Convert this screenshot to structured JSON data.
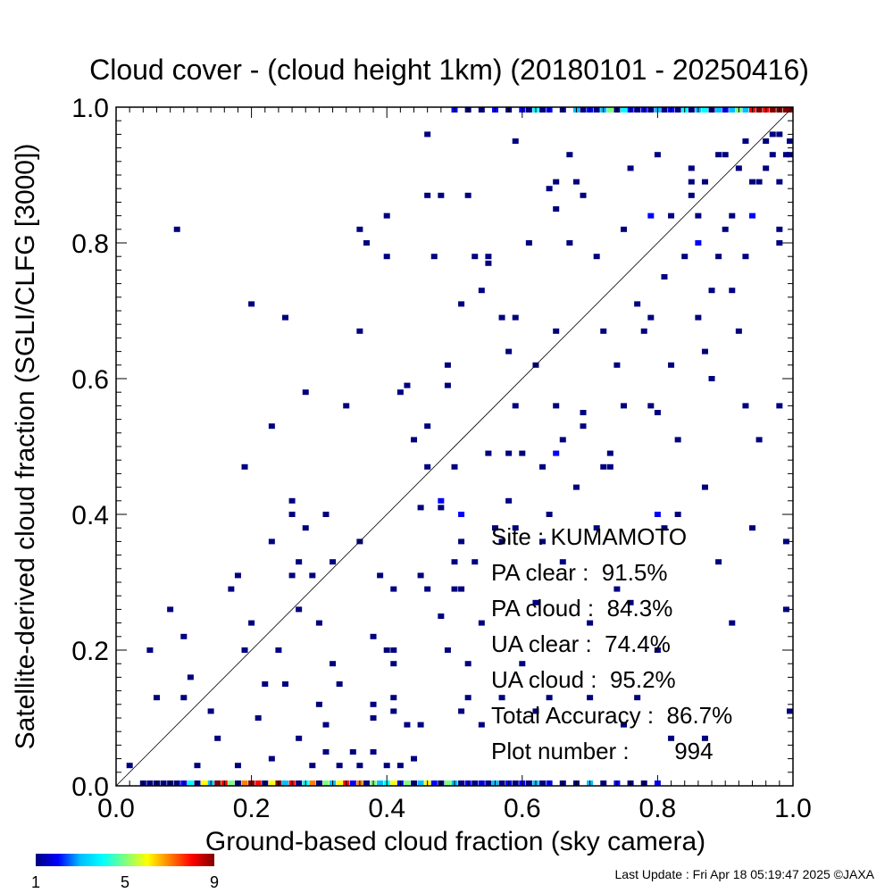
{
  "chart_data": {
    "type": "heatmap",
    "title": "Cloud cover - (cloud height 1km)  (20180101 - 20250416)",
    "xlabel": "Ground-based cloud fraction (sky camera)",
    "ylabel": "Satellite-derived cloud fraction (SGLI/CLFG [3000])",
    "xlim": [
      0.0,
      1.0
    ],
    "ylim": [
      0.0,
      1.0
    ],
    "x_ticks": [
      "0.0",
      "0.2",
      "0.4",
      "0.6",
      "0.8",
      "1.0"
    ],
    "y_ticks": [
      "0.0",
      "0.2",
      "0.4",
      "0.6",
      "0.8",
      "1.0"
    ],
    "grid": false,
    "reference_line": "y = x",
    "colorbar": {
      "min": 1,
      "max": 9,
      "tick_labels": [
        "1",
        "5",
        "9"
      ],
      "colors": [
        "#00007f",
        "#0000ff",
        "#00bfff",
        "#00ffff",
        "#7fff7f",
        "#ffff00",
        "#ff7f00",
        "#ff0000",
        "#7f0000"
      ]
    },
    "stats": [
      {
        "label": "Site : KUMAMOTO"
      },
      {
        "label": "PA clear :  91.5%"
      },
      {
        "label": "PA cloud :  84.3%"
      },
      {
        "label": "UA clear :  74.4%"
      },
      {
        "label": "UA cloud :  95.2%"
      },
      {
        "label": "Total Accuracy :  86.7%"
      },
      {
        "label": "Plot number :       994"
      }
    ],
    "points": [
      [
        0.02,
        0.03,
        1
      ],
      [
        0.05,
        0.2,
        1
      ],
      [
        0.06,
        0.13,
        1
      ],
      [
        0.08,
        0.26,
        1
      ],
      [
        0.09,
        0.82,
        1
      ],
      [
        0.1,
        0.22,
        1
      ],
      [
        0.1,
        0.13,
        1
      ],
      [
        0.11,
        0.16,
        1
      ],
      [
        0.12,
        0.03,
        1
      ],
      [
        0.14,
        0.11,
        1
      ],
      [
        0.15,
        0.07,
        1
      ],
      [
        0.17,
        0.29,
        1
      ],
      [
        0.18,
        0.31,
        1
      ],
      [
        0.18,
        0.03,
        1
      ],
      [
        0.19,
        0.2,
        1
      ],
      [
        0.19,
        0.47,
        1
      ],
      [
        0.2,
        0.71,
        1
      ],
      [
        0.2,
        0.24,
        1
      ],
      [
        0.21,
        0.1,
        1
      ],
      [
        0.22,
        0.15,
        1
      ],
      [
        0.23,
        0.04,
        1
      ],
      [
        0.23,
        0.36,
        1
      ],
      [
        0.23,
        0.53,
        1
      ],
      [
        0.24,
        0.2,
        1
      ],
      [
        0.25,
        0.69,
        1
      ],
      [
        0.25,
        0.15,
        1
      ],
      [
        0.26,
        0.31,
        1
      ],
      [
        0.26,
        0.42,
        1
      ],
      [
        0.26,
        0.4,
        1
      ],
      [
        0.27,
        0.33,
        1
      ],
      [
        0.27,
        0.26,
        1
      ],
      [
        0.27,
        0.07,
        1
      ],
      [
        0.28,
        0.58,
        1
      ],
      [
        0.28,
        0.38,
        1
      ],
      [
        0.29,
        0.03,
        1
      ],
      [
        0.29,
        0.31,
        1
      ],
      [
        0.3,
        0.24,
        1
      ],
      [
        0.3,
        0.12,
        1
      ],
      [
        0.31,
        0.09,
        1
      ],
      [
        0.31,
        0.4,
        1
      ],
      [
        0.31,
        0.05,
        1
      ],
      [
        0.32,
        0.18,
        1
      ],
      [
        0.32,
        0.33,
        1
      ],
      [
        0.33,
        0.15,
        1
      ],
      [
        0.33,
        0.03,
        1
      ],
      [
        0.34,
        0.56,
        1
      ],
      [
        0.35,
        0.05,
        1
      ],
      [
        0.36,
        0.82,
        1
      ],
      [
        0.36,
        0.67,
        1
      ],
      [
        0.36,
        0.36,
        1
      ],
      [
        0.36,
        0.03,
        1
      ],
      [
        0.37,
        0.8,
        1
      ],
      [
        0.38,
        0.12,
        1
      ],
      [
        0.38,
        0.1,
        1
      ],
      [
        0.38,
        0.05,
        1
      ],
      [
        0.38,
        0.22,
        1
      ],
      [
        0.39,
        0.31,
        1
      ],
      [
        0.4,
        0.84,
        1
      ],
      [
        0.4,
        0.2,
        1
      ],
      [
        0.4,
        0.78,
        1
      ],
      [
        0.4,
        0.03,
        1
      ],
      [
        0.41,
        0.13,
        1
      ],
      [
        0.41,
        0.11,
        1
      ],
      [
        0.41,
        0.2,
        1
      ],
      [
        0.41,
        0.18,
        1
      ],
      [
        0.41,
        0.29,
        1
      ],
      [
        0.42,
        0.58,
        1
      ],
      [
        0.42,
        0.03,
        1
      ],
      [
        0.43,
        0.59,
        1
      ],
      [
        0.43,
        0.09,
        1
      ],
      [
        0.44,
        0.51,
        1
      ],
      [
        0.44,
        0.04,
        1
      ],
      [
        0.45,
        0.09,
        1
      ],
      [
        0.45,
        0.31,
        1
      ],
      [
        0.45,
        0.41,
        1
      ],
      [
        0.46,
        0.87,
        1
      ],
      [
        0.46,
        0.96,
        1
      ],
      [
        0.46,
        0.29,
        1
      ],
      [
        0.46,
        0.53,
        1
      ],
      [
        0.46,
        0.47,
        1
      ],
      [
        0.47,
        0.78,
        1
      ],
      [
        0.48,
        0.87,
        1
      ],
      [
        0.48,
        0.41,
        1
      ],
      [
        0.48,
        0.25,
        1
      ],
      [
        0.48,
        0.42,
        2
      ],
      [
        0.49,
        0.62,
        1
      ],
      [
        0.49,
        0.59,
        1
      ],
      [
        0.49,
        0.2,
        1
      ],
      [
        0.5,
        0.29,
        1
      ],
      [
        0.5,
        0.47,
        1
      ],
      [
        0.5,
        0.33,
        1
      ],
      [
        0.51,
        0.71,
        1
      ],
      [
        0.51,
        0.36,
        1
      ],
      [
        0.51,
        0.29,
        1
      ],
      [
        0.51,
        0.4,
        2
      ],
      [
        0.51,
        0.11,
        1
      ],
      [
        0.52,
        0.87,
        1
      ],
      [
        0.52,
        0.18,
        1
      ],
      [
        0.52,
        0.13,
        1
      ],
      [
        0.53,
        0.78,
        1
      ],
      [
        0.53,
        0.33,
        1
      ],
      [
        0.54,
        0.73,
        1
      ],
      [
        0.54,
        0.24,
        1
      ],
      [
        0.54,
        0.09,
        1
      ],
      [
        0.55,
        0.78,
        1
      ],
      [
        0.55,
        0.77,
        1
      ],
      [
        0.55,
        0.49,
        1
      ],
      [
        0.56,
        0.38,
        1
      ],
      [
        0.57,
        0.69,
        1
      ],
      [
        0.57,
        0.13,
        1
      ],
      [
        0.57,
        0.36,
        1
      ],
      [
        0.58,
        0.64,
        1
      ],
      [
        0.58,
        0.49,
        1
      ],
      [
        0.58,
        0.42,
        1
      ],
      [
        0.59,
        0.95,
        1
      ],
      [
        0.59,
        0.69,
        1
      ],
      [
        0.59,
        0.56,
        1
      ],
      [
        0.59,
        0.38,
        1
      ],
      [
        0.6,
        0.49,
        1
      ],
      [
        0.6,
        0.18,
        1
      ],
      [
        0.61,
        0.8,
        1
      ],
      [
        0.62,
        0.27,
        1
      ],
      [
        0.62,
        0.62,
        1
      ],
      [
        0.62,
        0.11,
        1
      ],
      [
        0.63,
        0.47,
        1
      ],
      [
        0.63,
        0.36,
        1
      ],
      [
        0.64,
        0.88,
        1
      ],
      [
        0.64,
        0.4,
        1
      ],
      [
        0.64,
        0.13,
        1
      ],
      [
        0.65,
        0.85,
        1
      ],
      [
        0.65,
        0.89,
        1
      ],
      [
        0.65,
        0.49,
        2
      ],
      [
        0.65,
        0.67,
        1
      ],
      [
        0.65,
        0.56,
        1
      ],
      [
        0.66,
        0.51,
        1
      ],
      [
        0.66,
        0.33,
        1
      ],
      [
        0.67,
        0.93,
        1
      ],
      [
        0.67,
        0.8,
        1
      ],
      [
        0.68,
        0.89,
        1
      ],
      [
        0.68,
        0.44,
        1
      ],
      [
        0.69,
        0.87,
        1
      ],
      [
        0.69,
        0.53,
        1
      ],
      [
        0.69,
        0.55,
        1
      ],
      [
        0.7,
        0.24,
        1
      ],
      [
        0.7,
        0.13,
        1
      ],
      [
        0.71,
        0.78,
        1
      ],
      [
        0.71,
        0.38,
        1
      ],
      [
        0.72,
        0.67,
        1
      ],
      [
        0.72,
        0.47,
        1
      ],
      [
        0.73,
        0.49,
        1
      ],
      [
        0.73,
        0.47,
        1
      ],
      [
        0.74,
        0.29,
        1
      ],
      [
        0.74,
        0.62,
        1
      ],
      [
        0.75,
        0.82,
        1
      ],
      [
        0.75,
        0.56,
        1
      ],
      [
        0.75,
        0.09,
        1
      ],
      [
        0.76,
        0.91,
        1
      ],
      [
        0.76,
        0.27,
        1
      ],
      [
        0.77,
        0.71,
        1
      ],
      [
        0.77,
        0.13,
        1
      ],
      [
        0.78,
        0.67,
        1
      ],
      [
        0.79,
        0.84,
        2
      ],
      [
        0.79,
        0.56,
        1
      ],
      [
        0.79,
        0.69,
        1
      ],
      [
        0.8,
        0.55,
        1
      ],
      [
        0.8,
        0.93,
        1
      ],
      [
        0.8,
        0.4,
        2
      ],
      [
        0.8,
        0.2,
        1
      ],
      [
        0.81,
        0.75,
        1
      ],
      [
        0.81,
        0.38,
        1
      ],
      [
        0.82,
        0.62,
        1
      ],
      [
        0.82,
        0.84,
        1
      ],
      [
        0.82,
        0.07,
        1
      ],
      [
        0.83,
        0.4,
        1
      ],
      [
        0.83,
        0.51,
        1
      ],
      [
        0.84,
        0.78,
        1
      ],
      [
        0.85,
        0.87,
        1
      ],
      [
        0.85,
        0.91,
        1
      ],
      [
        0.85,
        0.89,
        1
      ],
      [
        0.86,
        0.84,
        1
      ],
      [
        0.86,
        0.69,
        1
      ],
      [
        0.86,
        0.8,
        2
      ],
      [
        0.87,
        0.64,
        1
      ],
      [
        0.87,
        0.44,
        1
      ],
      [
        0.87,
        0.89,
        1
      ],
      [
        0.87,
        0.07,
        1
      ],
      [
        0.88,
        0.73,
        1
      ],
      [
        0.88,
        0.6,
        1
      ],
      [
        0.89,
        0.93,
        1
      ],
      [
        0.89,
        0.78,
        1
      ],
      [
        0.89,
        0.33,
        1
      ],
      [
        0.9,
        0.93,
        1
      ],
      [
        0.9,
        0.82,
        1
      ],
      [
        0.91,
        0.84,
        1
      ],
      [
        0.91,
        0.73,
        1
      ],
      [
        0.91,
        0.24,
        1
      ],
      [
        0.92,
        0.91,
        1
      ],
      [
        0.92,
        0.67,
        1
      ],
      [
        0.93,
        0.78,
        1
      ],
      [
        0.93,
        0.95,
        1
      ],
      [
        0.93,
        0.56,
        1
      ],
      [
        0.94,
        0.89,
        1
      ],
      [
        0.94,
        0.84,
        2
      ],
      [
        0.94,
        0.38,
        1
      ],
      [
        0.95,
        0.89,
        1
      ],
      [
        0.95,
        0.51,
        1
      ],
      [
        0.96,
        0.95,
        1
      ],
      [
        0.96,
        0.91,
        1
      ],
      [
        0.97,
        0.96,
        1
      ],
      [
        0.97,
        0.93,
        1
      ],
      [
        0.98,
        0.96,
        1
      ],
      [
        0.98,
        0.82,
        1
      ],
      [
        0.98,
        0.8,
        1
      ],
      [
        0.98,
        0.89,
        1
      ],
      [
        0.98,
        0.56,
        1
      ],
      [
        0.99,
        0.93,
        1
      ],
      [
        0.99,
        0.36,
        1
      ],
      [
        0.99,
        0.26,
        1
      ],
      [
        1.0,
        0.93,
        1
      ],
      [
        1.0,
        0.95,
        1
      ],
      [
        1.0,
        0.11,
        1
      ],
      [
        0.04,
        0.0,
        1
      ],
      [
        0.05,
        0.0,
        1
      ],
      [
        0.06,
        0.0,
        1
      ],
      [
        0.07,
        0.0,
        1
      ],
      [
        0.08,
        0.0,
        1
      ],
      [
        0.09,
        0.0,
        1
      ],
      [
        0.1,
        0.0,
        2
      ],
      [
        0.11,
        0.0,
        4
      ],
      [
        0.12,
        0.0,
        1
      ],
      [
        0.13,
        0.0,
        6
      ],
      [
        0.14,
        0.0,
        3
      ],
      [
        0.15,
        0.0,
        9
      ],
      [
        0.16,
        0.0,
        8
      ],
      [
        0.17,
        0.0,
        5
      ],
      [
        0.18,
        0.0,
        1
      ],
      [
        0.19,
        0.0,
        7
      ],
      [
        0.2,
        0.0,
        9
      ],
      [
        0.21,
        0.0,
        8
      ],
      [
        0.22,
        0.0,
        1
      ],
      [
        0.23,
        0.0,
        6
      ],
      [
        0.24,
        0.0,
        9
      ],
      [
        0.25,
        0.0,
        3
      ],
      [
        0.26,
        0.0,
        8
      ],
      [
        0.27,
        0.0,
        1
      ],
      [
        0.28,
        0.0,
        4
      ],
      [
        0.29,
        0.0,
        7
      ],
      [
        0.3,
        0.0,
        1
      ],
      [
        0.31,
        0.0,
        5
      ],
      [
        0.32,
        0.0,
        3
      ],
      [
        0.33,
        0.0,
        6
      ],
      [
        0.34,
        0.0,
        8
      ],
      [
        0.35,
        0.0,
        2
      ],
      [
        0.36,
        0.0,
        7
      ],
      [
        0.37,
        0.0,
        1
      ],
      [
        0.38,
        0.0,
        5
      ],
      [
        0.39,
        0.0,
        3
      ],
      [
        0.4,
        0.0,
        4
      ],
      [
        0.41,
        0.0,
        6
      ],
      [
        0.42,
        0.0,
        2
      ],
      [
        0.43,
        0.0,
        5
      ],
      [
        0.44,
        0.0,
        1
      ],
      [
        0.45,
        0.0,
        3
      ],
      [
        0.46,
        0.0,
        6
      ],
      [
        0.47,
        0.0,
        2
      ],
      [
        0.48,
        0.0,
        1
      ],
      [
        0.49,
        0.0,
        5
      ],
      [
        0.5,
        0.0,
        3
      ],
      [
        0.51,
        0.0,
        1
      ],
      [
        0.52,
        0.0,
        2
      ],
      [
        0.53,
        0.0,
        1
      ],
      [
        0.54,
        0.0,
        2
      ],
      [
        0.55,
        0.0,
        1
      ],
      [
        0.56,
        0.0,
        3
      ],
      [
        0.57,
        0.0,
        1
      ],
      [
        0.58,
        0.0,
        2
      ],
      [
        0.59,
        0.0,
        1
      ],
      [
        0.6,
        0.0,
        2
      ],
      [
        0.61,
        0.0,
        1
      ],
      [
        0.62,
        0.0,
        3
      ],
      [
        0.63,
        0.0,
        1
      ],
      [
        0.64,
        0.0,
        2
      ],
      [
        0.66,
        0.0,
        1
      ],
      [
        0.68,
        0.0,
        1
      ],
      [
        0.7,
        0.0,
        3
      ],
      [
        0.72,
        0.0,
        1
      ],
      [
        0.74,
        0.0,
        2
      ],
      [
        0.76,
        0.0,
        1
      ],
      [
        0.78,
        0.0,
        1
      ],
      [
        0.8,
        0.0,
        2
      ],
      [
        0.5,
        1.0,
        2
      ],
      [
        0.52,
        1.0,
        1
      ],
      [
        0.54,
        1.0,
        1
      ],
      [
        0.56,
        1.0,
        2
      ],
      [
        0.58,
        1.0,
        1
      ],
      [
        0.6,
        1.0,
        2
      ],
      [
        0.61,
        1.0,
        1
      ],
      [
        0.62,
        1.0,
        4
      ],
      [
        0.63,
        1.0,
        1
      ],
      [
        0.64,
        1.0,
        2
      ],
      [
        0.66,
        1.0,
        1
      ],
      [
        0.68,
        1.0,
        3
      ],
      [
        0.69,
        1.0,
        1
      ],
      [
        0.7,
        1.0,
        2
      ],
      [
        0.71,
        1.0,
        1
      ],
      [
        0.72,
        1.0,
        3
      ],
      [
        0.73,
        1.0,
        5
      ],
      [
        0.74,
        1.0,
        1
      ],
      [
        0.75,
        1.0,
        4
      ],
      [
        0.76,
        1.0,
        2
      ],
      [
        0.77,
        1.0,
        1
      ],
      [
        0.78,
        1.0,
        2
      ],
      [
        0.79,
        1.0,
        1
      ],
      [
        0.8,
        1.0,
        3
      ],
      [
        0.81,
        1.0,
        1
      ],
      [
        0.82,
        1.0,
        2
      ],
      [
        0.83,
        1.0,
        1
      ],
      [
        0.84,
        1.0,
        4
      ],
      [
        0.85,
        1.0,
        1
      ],
      [
        0.86,
        1.0,
        3
      ],
      [
        0.87,
        1.0,
        4
      ],
      [
        0.88,
        1.0,
        1
      ],
      [
        0.89,
        1.0,
        3
      ],
      [
        0.9,
        1.0,
        2
      ],
      [
        0.91,
        1.0,
        3
      ],
      [
        0.92,
        1.0,
        5
      ],
      [
        0.93,
        1.0,
        3
      ],
      [
        0.94,
        1.0,
        8
      ],
      [
        0.95,
        1.0,
        9
      ],
      [
        0.96,
        1.0,
        8
      ],
      [
        0.97,
        1.0,
        9
      ],
      [
        0.98,
        1.0,
        9
      ],
      [
        0.99,
        1.0,
        9
      ],
      [
        1.0,
        1.0,
        9
      ]
    ]
  },
  "footer": {
    "update_text": "Last Update : Fri Apr 18 05:19:47 2025  ©JAXA"
  }
}
